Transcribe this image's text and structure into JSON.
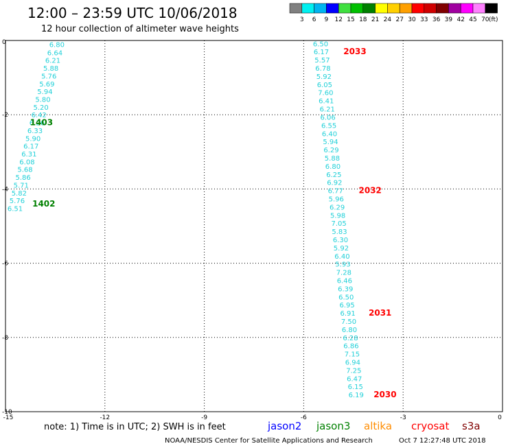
{
  "title": "12:00 – 23:59 UTC 10/06/2018",
  "subtitle": "12 hour collection of altimeter wave heights",
  "note": "note: 1) Time is in UTC; 2) SWH is in feet",
  "credit": "NOAA/NESDIS Center for Satellite Applications and Research",
  "timestamp": "Oct  7 12:27:48 UTC 2018",
  "colorbar": {
    "unit_label": "(ft)",
    "bins": [
      {
        "color": "#808080",
        "label": "3"
      },
      {
        "color": "#00f0f0",
        "label": "6"
      },
      {
        "color": "#00b4f0",
        "label": "9"
      },
      {
        "color": "#0000ff",
        "label": "12"
      },
      {
        "color": "#40e040",
        "label": "15"
      },
      {
        "color": "#00c000",
        "label": "18"
      },
      {
        "color": "#008000",
        "label": "21"
      },
      {
        "color": "#ffff00",
        "label": "24"
      },
      {
        "color": "#ffd000",
        "label": "27"
      },
      {
        "color": "#ffa000",
        "label": "30"
      },
      {
        "color": "#ff0000",
        "label": "33"
      },
      {
        "color": "#d00000",
        "label": "36"
      },
      {
        "color": "#800000",
        "label": "39"
      },
      {
        "color": "#a000a0",
        "label": "42"
      },
      {
        "color": "#ff00ff",
        "label": "45"
      },
      {
        "color": "#ff80ff",
        "label": "70"
      },
      {
        "color": "#000000",
        "label": ""
      }
    ]
  },
  "legend": [
    {
      "name": "jason2",
      "color": "#0000ff"
    },
    {
      "name": "jason3",
      "color": "#008000"
    },
    {
      "name": "altika",
      "color": "#ff8c00"
    },
    {
      "name": "cryosat",
      "color": "#ff0000"
    },
    {
      "name": "s3a",
      "color": "#800000"
    }
  ],
  "chart_data": {
    "type": "scatter",
    "xlim": [
      -15,
      0
    ],
    "ylim": [
      -10,
      0
    ],
    "x_ticks": [
      -15,
      -12,
      -9,
      -6,
      -3,
      0
    ],
    "y_ticks": [
      0,
      -2,
      -4,
      -6,
      -8,
      -10
    ],
    "x_tick_labels": [
      "-15",
      "-12",
      "-9",
      "-6",
      "-3",
      "0"
    ],
    "y_tick_labels": [
      "0",
      "-2",
      "-4",
      "-6",
      "-8",
      "-10"
    ],
    "grid": true,
    "series": [
      {
        "name": "jason3",
        "label_color": "#20d0d8",
        "time_color": "#008000",
        "points": [
          {
            "x": -13.68,
            "y": -0.1,
            "swh": "6.80"
          },
          {
            "x": -13.74,
            "y": -0.32,
            "swh": "6.64"
          },
          {
            "x": -13.8,
            "y": -0.53,
            "swh": "6.21"
          },
          {
            "x": -13.86,
            "y": -0.74,
            "swh": "5.88"
          },
          {
            "x": -13.92,
            "y": -0.95,
            "swh": "5.76"
          },
          {
            "x": -13.98,
            "y": -1.16,
            "swh": "5.69"
          },
          {
            "x": -14.04,
            "y": -1.37,
            "swh": "5.94"
          },
          {
            "x": -14.1,
            "y": -1.58,
            "swh": "5.80"
          },
          {
            "x": -14.16,
            "y": -1.79,
            "swh": "5.20"
          },
          {
            "x": -14.22,
            "y": -2.0,
            "swh": "6.42"
          },
          {
            "x": -14.28,
            "y": -2.21,
            "swh": "6.26"
          },
          {
            "x": -14.34,
            "y": -2.42,
            "swh": "6.33"
          },
          {
            "x": -14.4,
            "y": -2.63,
            "swh": "5.90"
          },
          {
            "x": -14.46,
            "y": -2.84,
            "swh": "6.17"
          },
          {
            "x": -14.52,
            "y": -3.05,
            "swh": "6.31"
          },
          {
            "x": -14.58,
            "y": -3.26,
            "swh": "6.08"
          },
          {
            "x": -14.64,
            "y": -3.47,
            "swh": "5.68"
          },
          {
            "x": -14.7,
            "y": -3.68,
            "swh": "5.86"
          },
          {
            "x": -14.76,
            "y": -3.89,
            "swh": "5.71"
          },
          {
            "x": -14.82,
            "y": -4.1,
            "swh": "5.82"
          },
          {
            "x": -14.88,
            "y": -4.31,
            "swh": "5.76"
          },
          {
            "x": -14.94,
            "y": -4.52,
            "swh": "6.51"
          }
        ],
        "times": [
          {
            "x": -14.26,
            "y": -2.21,
            "label": "1403"
          },
          {
            "x": -14.19,
            "y": -4.4,
            "label": "1402"
          }
        ]
      },
      {
        "name": "cryosat",
        "label_color": "#20d0d8",
        "time_color": "#ff0000",
        "points": [
          {
            "x": -5.72,
            "y": -0.08,
            "swh": "6.50"
          },
          {
            "x": -5.7,
            "y": -0.3,
            "swh": "6.17"
          },
          {
            "x": -5.67,
            "y": -0.52,
            "swh": "5.57"
          },
          {
            "x": -5.65,
            "y": -0.74,
            "swh": "6.78"
          },
          {
            "x": -5.62,
            "y": -0.96,
            "swh": "5.92"
          },
          {
            "x": -5.6,
            "y": -1.18,
            "swh": "6.05"
          },
          {
            "x": -5.57,
            "y": -1.4,
            "swh": "7.60"
          },
          {
            "x": -5.55,
            "y": -1.62,
            "swh": "6.41"
          },
          {
            "x": -5.52,
            "y": -1.84,
            "swh": "6.21"
          },
          {
            "x": -5.5,
            "y": -2.06,
            "swh": "6.06"
          },
          {
            "x": -5.47,
            "y": -2.28,
            "swh": "6.55"
          },
          {
            "x": -5.45,
            "y": -2.5,
            "swh": "6.40"
          },
          {
            "x": -5.42,
            "y": -2.72,
            "swh": "5.94"
          },
          {
            "x": -5.4,
            "y": -2.94,
            "swh": "6.29"
          },
          {
            "x": -5.37,
            "y": -3.16,
            "swh": "5.88"
          },
          {
            "x": -5.35,
            "y": -3.38,
            "swh": "6.80"
          },
          {
            "x": -5.32,
            "y": -3.6,
            "swh": "6.25"
          },
          {
            "x": -5.3,
            "y": -3.82,
            "swh": "6.92"
          },
          {
            "x": -5.27,
            "y": -4.04,
            "swh": "6.77"
          },
          {
            "x": -5.25,
            "y": -4.26,
            "swh": "5.96"
          },
          {
            "x": -5.22,
            "y": -4.48,
            "swh": "6.29"
          },
          {
            "x": -5.2,
            "y": -4.7,
            "swh": "5.98"
          },
          {
            "x": -5.17,
            "y": -4.92,
            "swh": "7.05"
          },
          {
            "x": -5.15,
            "y": -5.14,
            "swh": "5.83"
          },
          {
            "x": -5.12,
            "y": -5.36,
            "swh": "6.30"
          },
          {
            "x": -5.1,
            "y": -5.58,
            "swh": "5.92"
          },
          {
            "x": -5.07,
            "y": -5.8,
            "swh": "6.40"
          },
          {
            "x": -5.05,
            "y": -6.02,
            "swh": "5.93"
          },
          {
            "x": -5.02,
            "y": -6.24,
            "swh": "7.28"
          },
          {
            "x": -5.0,
            "y": -6.46,
            "swh": "6.46"
          },
          {
            "x": -4.97,
            "y": -6.68,
            "swh": "6.39"
          },
          {
            "x": -4.95,
            "y": -6.9,
            "swh": "6.50"
          },
          {
            "x": -4.92,
            "y": -7.12,
            "swh": "6.95"
          },
          {
            "x": -4.9,
            "y": -7.34,
            "swh": "6.91"
          },
          {
            "x": -4.87,
            "y": -7.56,
            "swh": "7.50"
          },
          {
            "x": -4.85,
            "y": -7.78,
            "swh": "6.80"
          },
          {
            "x": -4.82,
            "y": -8.0,
            "swh": "6.28"
          },
          {
            "x": -4.8,
            "y": -8.22,
            "swh": "6.86"
          },
          {
            "x": -4.77,
            "y": -8.44,
            "swh": "7.15"
          },
          {
            "x": -4.75,
            "y": -8.66,
            "swh": "6.94"
          },
          {
            "x": -4.72,
            "y": -8.88,
            "swh": "7.25"
          },
          {
            "x": -4.7,
            "y": -9.1,
            "swh": "6.47"
          },
          {
            "x": -4.67,
            "y": -9.32,
            "swh": "6.15"
          },
          {
            "x": -4.65,
            "y": -9.54,
            "swh": "6.19"
          }
        ],
        "times": [
          {
            "x": -4.8,
            "y": -0.3,
            "label": "2033"
          },
          {
            "x": -4.34,
            "y": -4.04,
            "label": "2032"
          },
          {
            "x": -4.04,
            "y": -7.34,
            "label": "2031"
          },
          {
            "x": -3.89,
            "y": -9.54,
            "label": "2030"
          }
        ]
      }
    ]
  }
}
